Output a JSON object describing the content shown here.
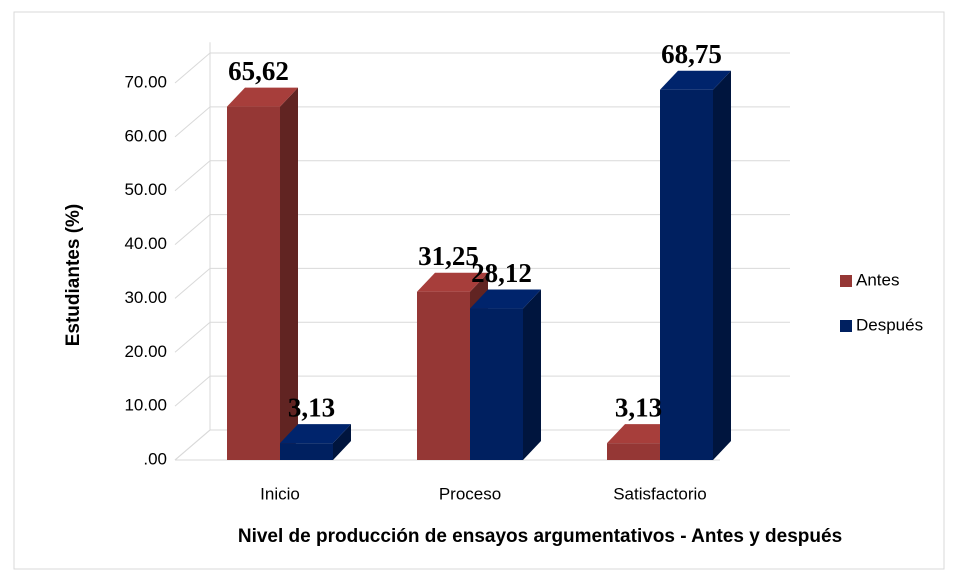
{
  "chart_data": {
    "type": "bar3d",
    "x_label": "Nivel de producción de ensayos argumentativos - Antes y después",
    "y_label": "Estudiantes (%)",
    "categories": [
      "Inicio",
      "Proceso",
      "Satisfactorio"
    ],
    "series": [
      {
        "name": "Antes",
        "color": "#953735",
        "values": [
          65.62,
          31.25,
          3.13
        ],
        "value_labels": [
          "65,62",
          "31,25",
          "3,13"
        ]
      },
      {
        "name": "Después",
        "color": "#002060",
        "values": [
          3.13,
          28.12,
          68.75
        ],
        "value_labels": [
          "3,13",
          "28,12",
          "68,75"
        ]
      }
    ],
    "ylim": [
      0,
      72
    ],
    "yticks": [
      {
        "value": 0,
        "label": ".00"
      },
      {
        "value": 10,
        "label": "10.00"
      },
      {
        "value": 20,
        "label": "20.00"
      },
      {
        "value": 30,
        "label": "30.00"
      },
      {
        "value": 40,
        "label": "40.00"
      },
      {
        "value": 50,
        "label": "50.00"
      },
      {
        "value": 60,
        "label": "60.00"
      },
      {
        "value": 70,
        "label": "70.00"
      }
    ],
    "grid": true,
    "legend": "right"
  }
}
